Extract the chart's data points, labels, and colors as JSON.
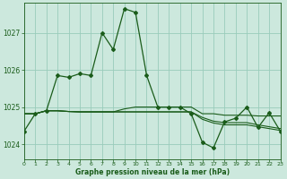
{
  "background_color": "#cce8dd",
  "grid_color": "#99ccbb",
  "line_color": "#1a5c1a",
  "xlabel": "Graphe pression niveau de la mer (hPa)",
  "xlim": [
    0,
    23
  ],
  "ylim": [
    1023.6,
    1027.8
  ],
  "yticks": [
    1024,
    1025,
    1026,
    1027
  ],
  "xticks": [
    0,
    1,
    2,
    3,
    4,
    5,
    6,
    7,
    8,
    9,
    10,
    11,
    12,
    13,
    14,
    15,
    16,
    17,
    18,
    19,
    20,
    21,
    22,
    23
  ],
  "series_main": [
    1024.35,
    1024.82,
    1024.9,
    1025.85,
    1025.8,
    1025.9,
    1025.85,
    1027.0,
    1026.55,
    1027.65,
    1027.55,
    1025.85,
    1025.0,
    1025.0,
    1025.0,
    1024.82,
    1024.05,
    1023.9,
    1024.6,
    1024.7,
    1025.0,
    1024.45,
    1024.85,
    1024.35
  ],
  "series_flat1": [
    1024.82,
    1024.82,
    1024.9,
    1024.9,
    1024.88,
    1024.87,
    1024.87,
    1024.87,
    1024.87,
    1024.95,
    1025.0,
    1025.0,
    1025.0,
    1025.0,
    1025.0,
    1025.0,
    1024.82,
    1024.82,
    1024.78,
    1024.78,
    1024.78,
    1024.76,
    1024.76,
    1024.76
  ],
  "series_flat2": [
    1024.82,
    1024.82,
    1024.9,
    1024.9,
    1024.88,
    1024.87,
    1024.87,
    1024.87,
    1024.87,
    1024.87,
    1024.87,
    1024.87,
    1024.87,
    1024.87,
    1024.87,
    1024.87,
    1024.72,
    1024.62,
    1024.58,
    1024.58,
    1024.58,
    1024.52,
    1024.47,
    1024.42
  ],
  "series_flat3": [
    1024.82,
    1024.82,
    1024.9,
    1024.9,
    1024.88,
    1024.87,
    1024.87,
    1024.87,
    1024.87,
    1024.87,
    1024.87,
    1024.87,
    1024.87,
    1024.87,
    1024.87,
    1024.87,
    1024.67,
    1024.57,
    1024.52,
    1024.52,
    1024.52,
    1024.47,
    1024.42,
    1024.37
  ]
}
